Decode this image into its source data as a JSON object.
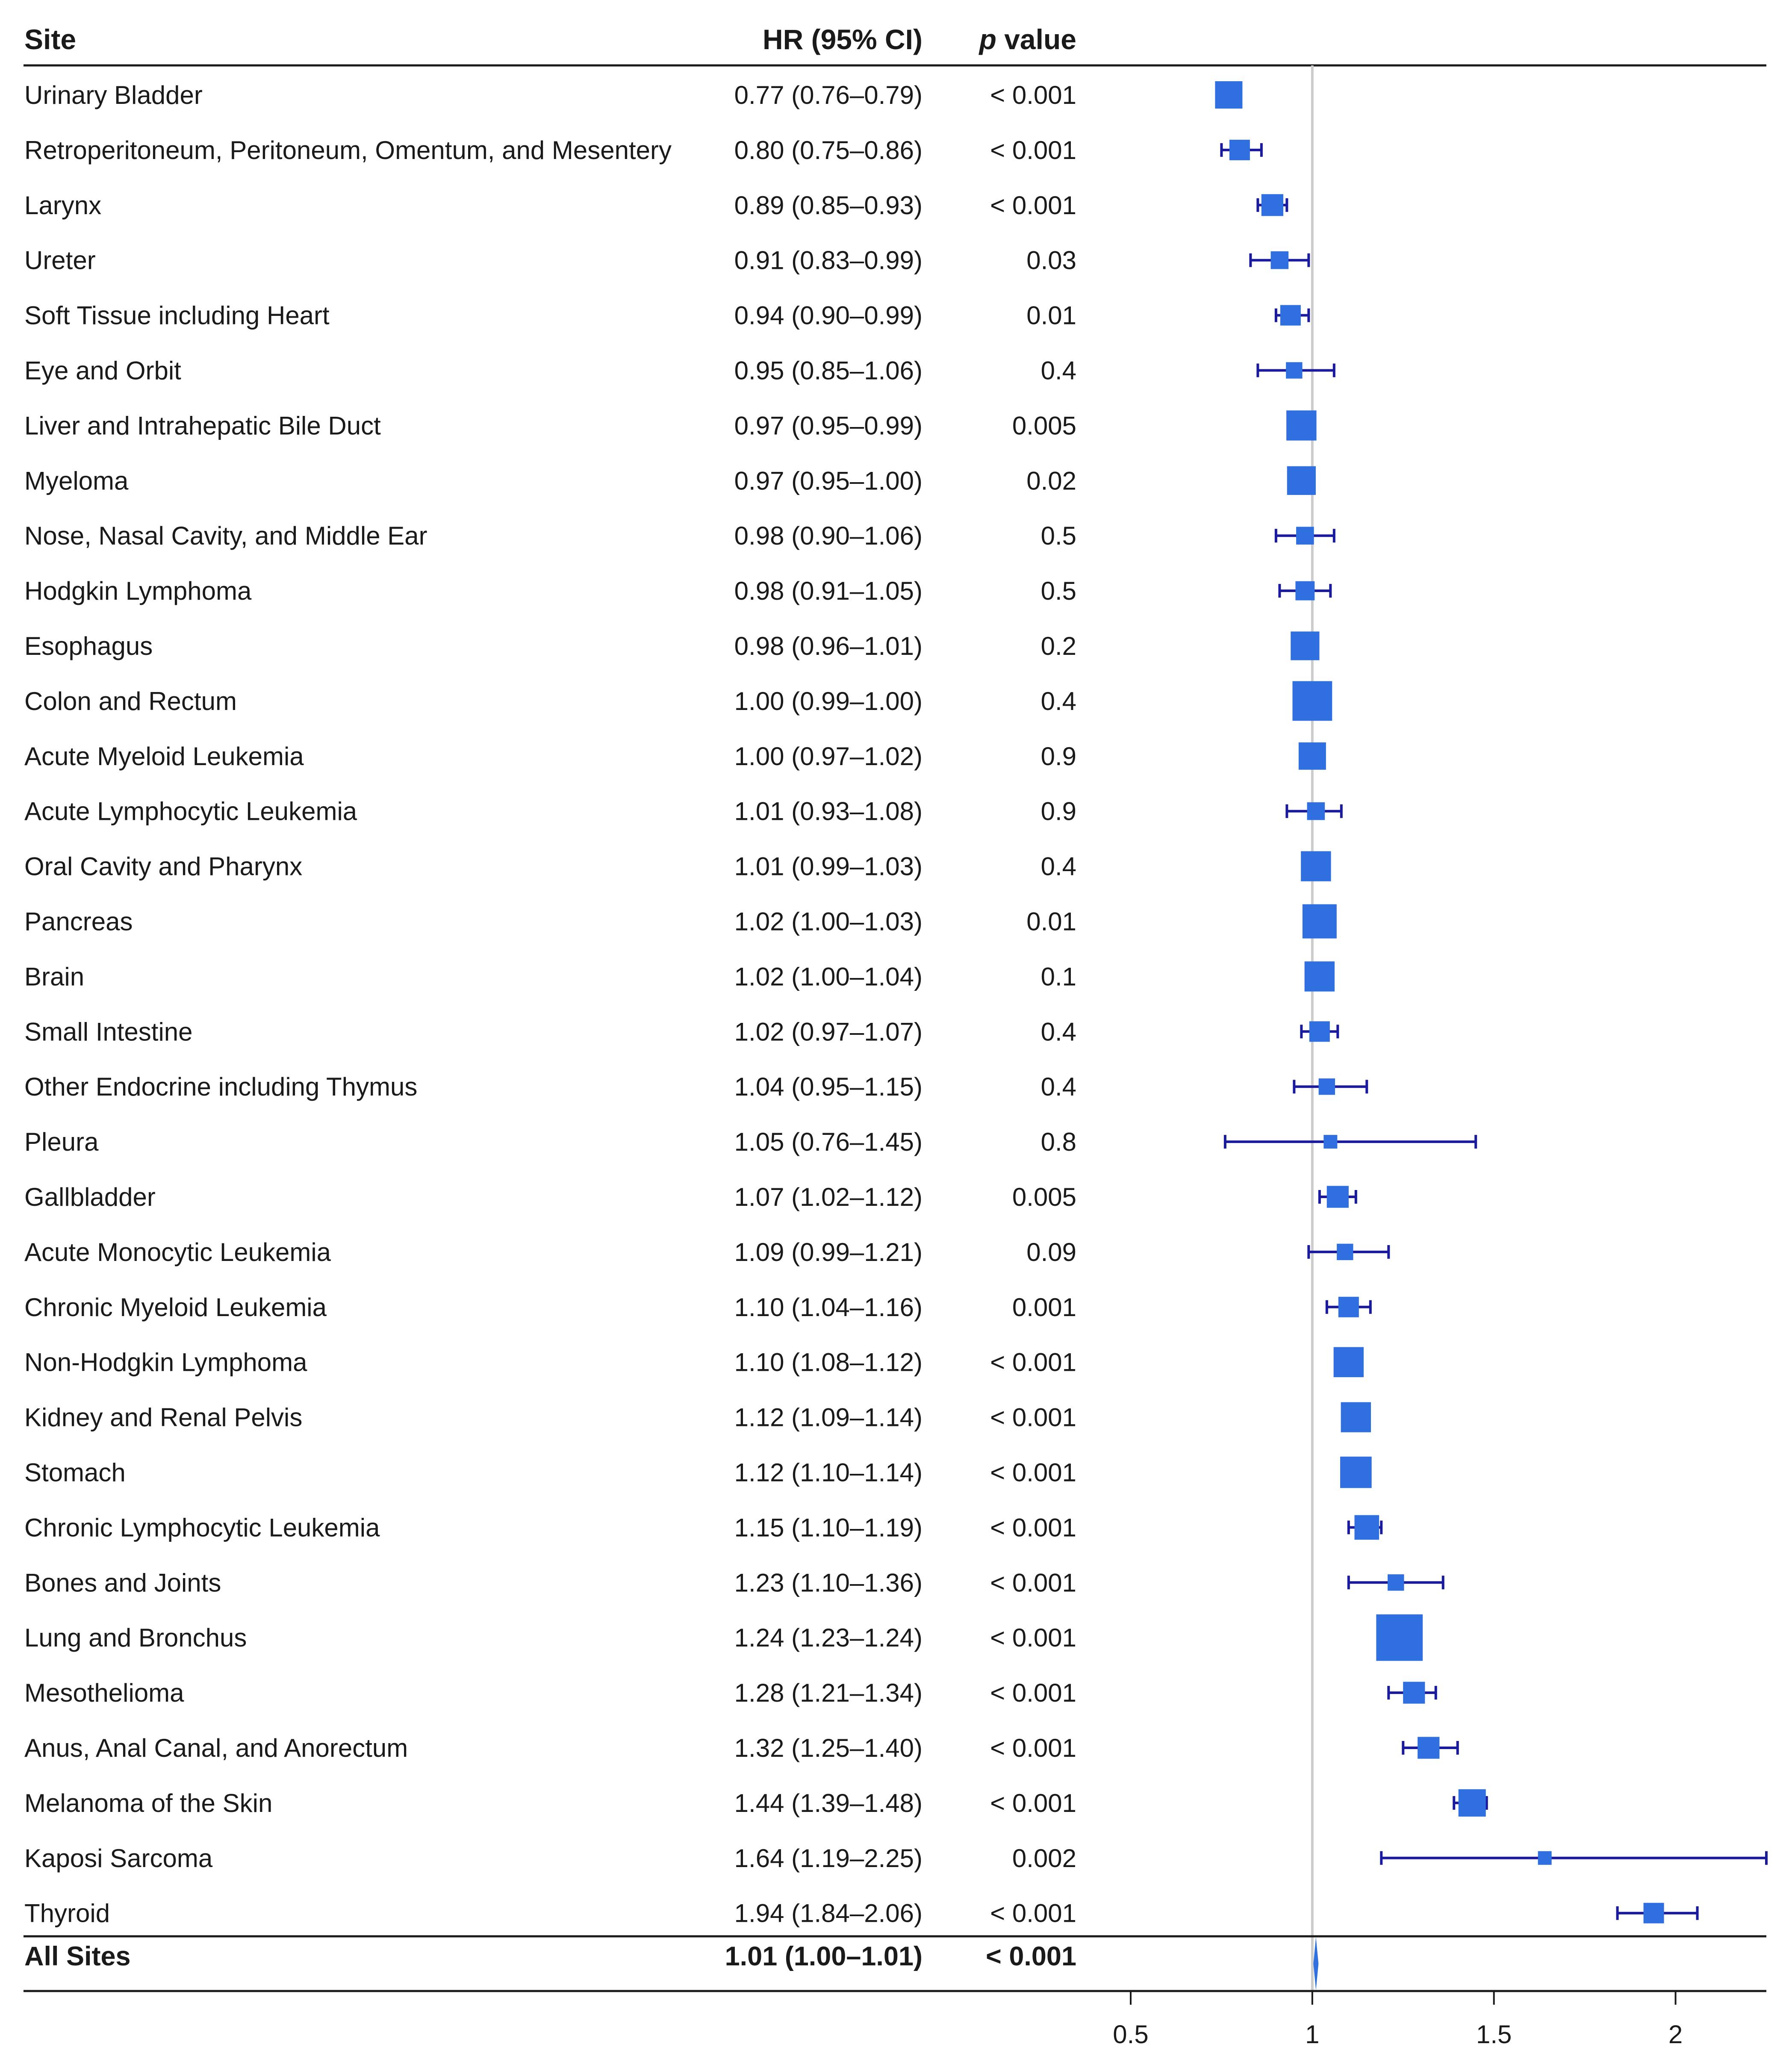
{
  "chart_data": {
    "type": "forest",
    "title": "",
    "columns": {
      "site": "Site",
      "hr": "HR (95% CI)",
      "p_prefix": "p",
      "p_suffix": " value"
    },
    "xlabel": "",
    "xlim": [
      0.5,
      2.25
    ],
    "xticks": [
      0.5,
      1,
      1.5,
      2
    ],
    "xtick_labels": [
      "0.5",
      "1",
      "1.5",
      "2"
    ],
    "reference_line": 1,
    "colors": {
      "marker": "#2f6fdf",
      "ci": "#1a1a9e",
      "reference": "#cccccc",
      "rule": "#1a1a1a"
    },
    "rows": [
      {
        "site": "Urinary Bladder",
        "hr_text": "0.77 (0.76–0.79)",
        "p": "< 0.001",
        "hr": 0.77,
        "lo": 0.76,
        "hi": 0.79,
        "size": 2.0
      },
      {
        "site": "Retroperitoneum, Peritoneum, Omentum, and Mesentery",
        "hr_text": "0.80 (0.75–0.86)",
        "p": "< 0.001",
        "hr": 0.8,
        "lo": 0.75,
        "hi": 0.86,
        "size": 1.5
      },
      {
        "site": "Larynx",
        "hr_text": "0.89 (0.85–0.93)",
        "p": "< 0.001",
        "hr": 0.89,
        "lo": 0.85,
        "hi": 0.93,
        "size": 1.6
      },
      {
        "site": "Ureter",
        "hr_text": "0.91 (0.83–0.99)",
        "p": "0.03",
        "hr": 0.91,
        "lo": 0.83,
        "hi": 0.99,
        "size": 1.3
      },
      {
        "site": "Soft Tissue including Heart",
        "hr_text": "0.94 (0.90–0.99)",
        "p": "0.01",
        "hr": 0.94,
        "lo": 0.9,
        "hi": 0.99,
        "size": 1.5
      },
      {
        "site": "Eye and Orbit",
        "hr_text": "0.95 (0.85–1.06)",
        "p": "0.4",
        "hr": 0.95,
        "lo": 0.85,
        "hi": 1.06,
        "size": 1.2
      },
      {
        "site": "Liver and Intrahepatic Bile Duct",
        "hr_text": "0.97 (0.95–0.99)",
        "p": "0.005",
        "hr": 0.97,
        "lo": 0.95,
        "hi": 0.99,
        "size": 2.2
      },
      {
        "site": "Myeloma",
        "hr_text": "0.97 (0.95–1.00)",
        "p": "0.02",
        "hr": 0.97,
        "lo": 0.95,
        "hi": 1.0,
        "size": 2.1
      },
      {
        "site": "Nose, Nasal Cavity, and Middle Ear",
        "hr_text": "0.98 (0.90–1.06)",
        "p": "0.5",
        "hr": 0.98,
        "lo": 0.9,
        "hi": 1.06,
        "size": 1.3
      },
      {
        "site": "Hodgkin Lymphoma",
        "hr_text": "0.98 (0.91–1.05)",
        "p": "0.5",
        "hr": 0.98,
        "lo": 0.91,
        "hi": 1.05,
        "size": 1.4
      },
      {
        "site": "Esophagus",
        "hr_text": "0.98 (0.96–1.01)",
        "p": "0.2",
        "hr": 0.98,
        "lo": 0.96,
        "hi": 1.01,
        "size": 2.1
      },
      {
        "site": "Colon and Rectum",
        "hr_text": "1.00 (0.99–1.00)",
        "p": "0.4",
        "hr": 1.0,
        "lo": 0.99,
        "hi": 1.0,
        "size": 2.9
      },
      {
        "site": "Acute Myeloid Leukemia",
        "hr_text": "1.00 (0.97–1.02)",
        "p": "0.9",
        "hr": 1.0,
        "lo": 0.97,
        "hi": 1.02,
        "size": 2.0
      },
      {
        "site": "Acute Lymphocytic Leukemia",
        "hr_text": "1.01 (0.93–1.08)",
        "p": "0.9",
        "hr": 1.01,
        "lo": 0.93,
        "hi": 1.08,
        "size": 1.3
      },
      {
        "site": "Oral Cavity and Pharynx",
        "hr_text": "1.01 (0.99–1.03)",
        "p": "0.4",
        "hr": 1.01,
        "lo": 0.99,
        "hi": 1.03,
        "size": 2.2
      },
      {
        "site": "Pancreas",
        "hr_text": "1.02 (1.00–1.03)",
        "p": "0.01",
        "hr": 1.02,
        "lo": 1.0,
        "hi": 1.03,
        "size": 2.5
      },
      {
        "site": "Brain",
        "hr_text": "1.02 (1.00–1.04)",
        "p": "0.1",
        "hr": 1.02,
        "lo": 1.0,
        "hi": 1.04,
        "size": 2.2
      },
      {
        "site": "Small Intestine",
        "hr_text": "1.02 (0.97–1.07)",
        "p": "0.4",
        "hr": 1.02,
        "lo": 0.97,
        "hi": 1.07,
        "size": 1.5
      },
      {
        "site": "Other Endocrine including Thymus",
        "hr_text": "1.04 (0.95–1.15)",
        "p": "0.4",
        "hr": 1.04,
        "lo": 0.95,
        "hi": 1.15,
        "size": 1.2
      },
      {
        "site": "Pleura",
        "hr_text": "1.05 (0.76–1.45)",
        "p": "0.8",
        "hr": 1.05,
        "lo": 0.76,
        "hi": 1.45,
        "size": 1.0
      },
      {
        "site": "Gallbladder",
        "hr_text": "1.07 (1.02–1.12)",
        "p": "0.005",
        "hr": 1.07,
        "lo": 1.02,
        "hi": 1.12,
        "size": 1.6
      },
      {
        "site": "Acute Monocytic Leukemia",
        "hr_text": "1.09 (0.99–1.21)",
        "p": "0.09",
        "hr": 1.09,
        "lo": 0.99,
        "hi": 1.21,
        "size": 1.2
      },
      {
        "site": "Chronic Myeloid Leukemia",
        "hr_text": "1.10 (1.04–1.16)",
        "p": "0.001",
        "hr": 1.1,
        "lo": 1.04,
        "hi": 1.16,
        "size": 1.5
      },
      {
        "site": "Non-Hodgkin Lymphoma",
        "hr_text": "1.10 (1.08–1.12)",
        "p": "< 0.001",
        "hr": 1.1,
        "lo": 1.08,
        "hi": 1.12,
        "size": 2.2
      },
      {
        "site": "Kidney and Renal Pelvis",
        "hr_text": "1.12 (1.09–1.14)",
        "p": "< 0.001",
        "hr": 1.12,
        "lo": 1.09,
        "hi": 1.14,
        "size": 2.2
      },
      {
        "site": "Stomach",
        "hr_text": "1.12 (1.10–1.14)",
        "p": "< 0.001",
        "hr": 1.12,
        "lo": 1.1,
        "hi": 1.14,
        "size": 2.3
      },
      {
        "site": "Chronic Lymphocytic Leukemia",
        "hr_text": "1.15 (1.10–1.19)",
        "p": "< 0.001",
        "hr": 1.15,
        "lo": 1.1,
        "hi": 1.19,
        "size": 1.8
      },
      {
        "site": "Bones and Joints",
        "hr_text": "1.23 (1.10–1.36)",
        "p": "< 0.001",
        "hr": 1.23,
        "lo": 1.1,
        "hi": 1.36,
        "size": 1.2
      },
      {
        "site": "Lung and Bronchus",
        "hr_text": "1.24 (1.23–1.24)",
        "p": "< 0.001",
        "hr": 1.24,
        "lo": 1.23,
        "hi": 1.24,
        "size": 3.4
      },
      {
        "site": "Mesothelioma",
        "hr_text": "1.28 (1.21–1.34)",
        "p": "< 0.001",
        "hr": 1.28,
        "lo": 1.21,
        "hi": 1.34,
        "size": 1.6
      },
      {
        "site": "Anus, Anal Canal, and Anorectum",
        "hr_text": "1.32 (1.25–1.40)",
        "p": "< 0.001",
        "hr": 1.32,
        "lo": 1.25,
        "hi": 1.4,
        "size": 1.6
      },
      {
        "site": "Melanoma of the Skin",
        "hr_text": "1.44 (1.39–1.48)",
        "p": "< 0.001",
        "hr": 1.44,
        "lo": 1.39,
        "hi": 1.48,
        "size": 2.0
      },
      {
        "site": "Kaposi Sarcoma",
        "hr_text": "1.64 (1.19–2.25)",
        "p": "0.002",
        "hr": 1.64,
        "lo": 1.19,
        "hi": 2.25,
        "size": 1.0
      },
      {
        "site": "Thyroid",
        "hr_text": "1.94 (1.84–2.06)",
        "p": "< 0.001",
        "hr": 1.94,
        "lo": 1.84,
        "hi": 2.06,
        "size": 1.5
      }
    ],
    "summary": {
      "site": "All Sites",
      "hr_text": "1.01 (1.00–1.01)",
      "p": "< 0.001",
      "hr": 1.01,
      "lo": 1.0,
      "hi": 1.01
    }
  }
}
